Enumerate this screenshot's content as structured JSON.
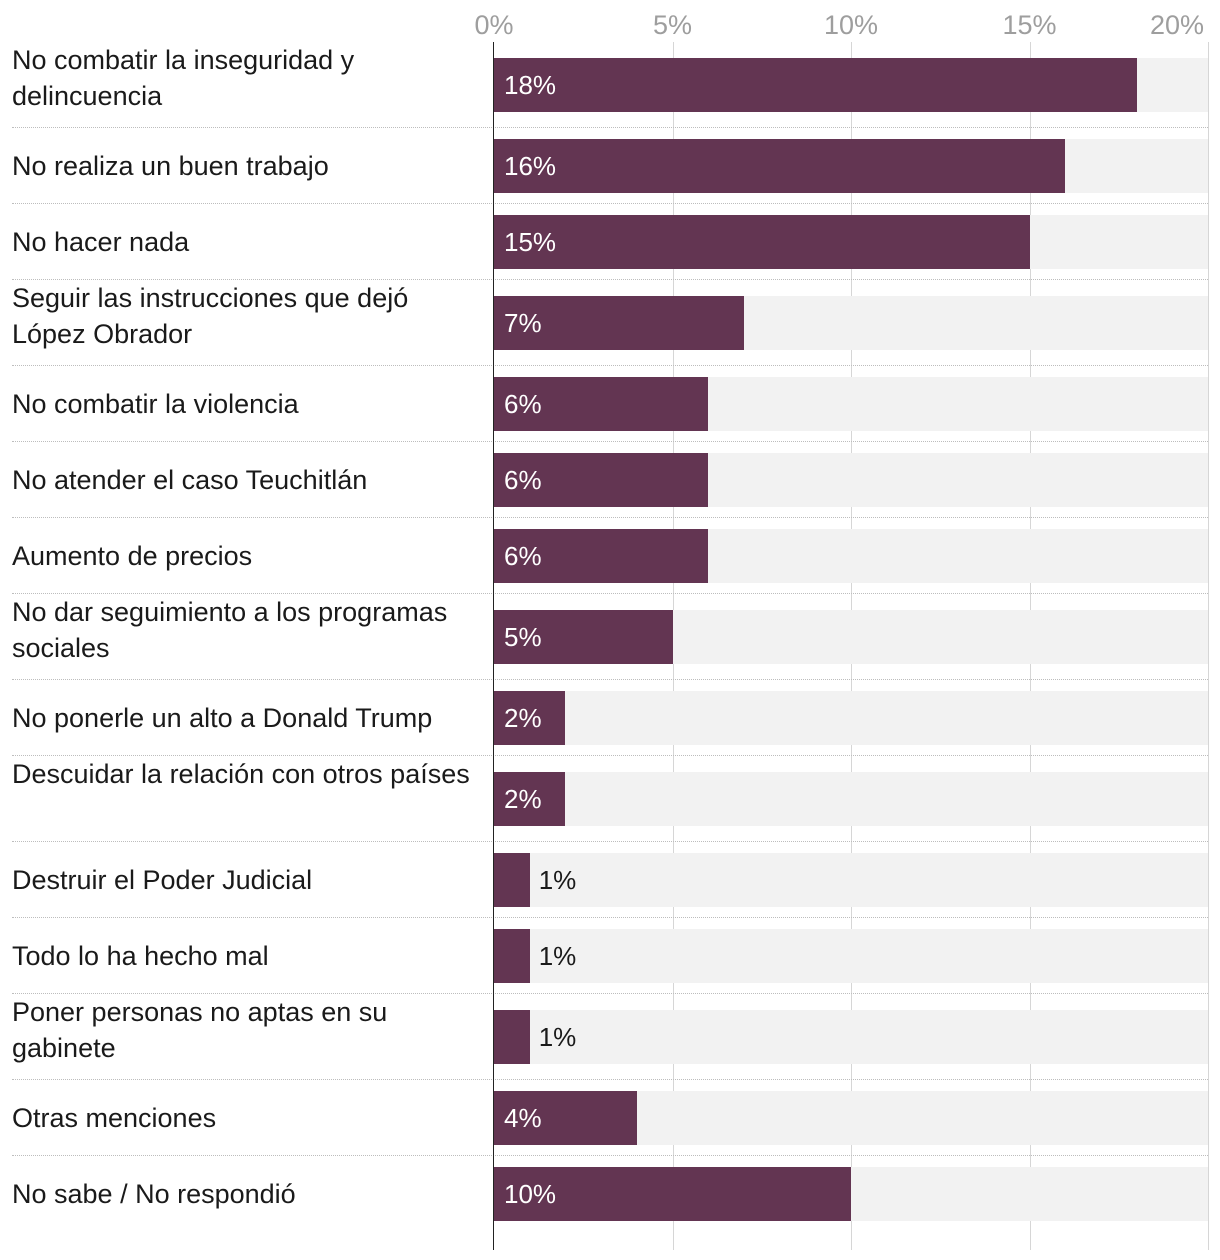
{
  "chart_data": {
    "type": "bar",
    "orientation": "horizontal",
    "x_ticks": [
      "0%",
      "5%",
      "10%",
      "15%",
      "20%"
    ],
    "xlim": [
      0,
      20
    ],
    "bar_color": "#633552",
    "track_color": "#f2f2f2",
    "grid": true,
    "categories": [
      "No combatir la inseguridad y delincuencia",
      "No realiza un buen trabajo",
      "No hacer nada",
      "Seguir las instrucciones que dejó López Obrador",
      "No combatir la violencia",
      "No atender el caso Teuchitlán",
      "Aumento de precios",
      "No dar seguimiento a los programas sociales",
      "No ponerle un alto a Donald Trump",
      "Descuidar la relación con otros países",
      "Destruir el Poder Judicial",
      "Todo lo ha hecho mal",
      "Poner personas no aptas en su gabinete",
      "Otras menciones",
      "No sabe / No respondió"
    ],
    "values": [
      18,
      16,
      15,
      7,
      6,
      6,
      6,
      5,
      2,
      2,
      1,
      1,
      1,
      4,
      10
    ],
    "value_labels": [
      "18%",
      "16%",
      "15%",
      "7%",
      "6%",
      "6%",
      "6%",
      "5%",
      "2%",
      "2%",
      "1%",
      "1%",
      "1%",
      "4%",
      "10%"
    ]
  }
}
